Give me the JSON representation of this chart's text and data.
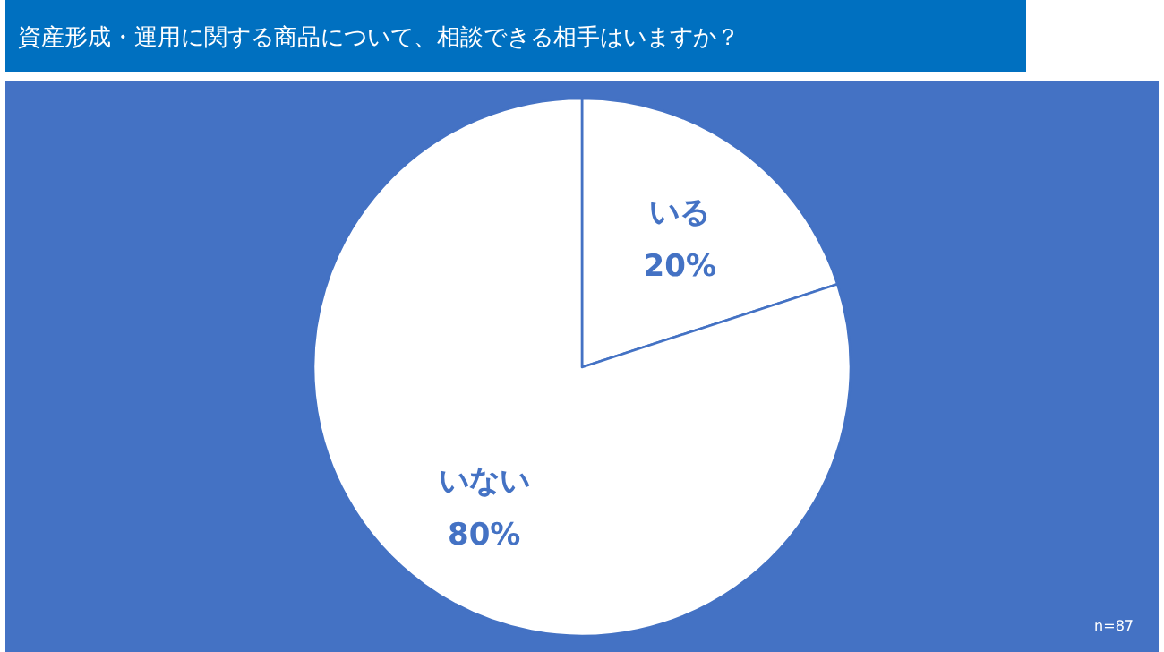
{
  "chart_data": {
    "type": "pie",
    "title": "資産形成・運用に関する商品について、相談できる相手はいますか？",
    "categories": [
      "いる",
      "いない"
    ],
    "values": [
      20,
      80
    ],
    "colors": [
      "#ffffff",
      "#ffffff"
    ],
    "value_labels": [
      "20%",
      "80%"
    ],
    "annotations": [
      "n=87"
    ]
  }
}
